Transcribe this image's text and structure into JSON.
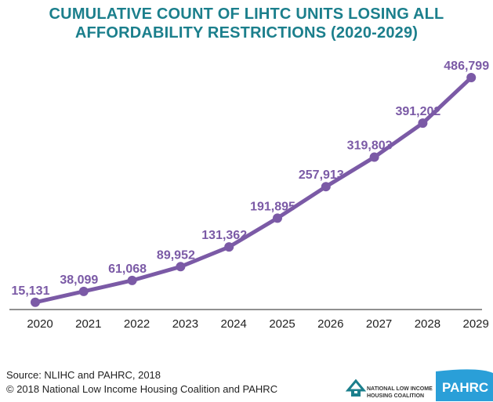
{
  "title": {
    "line1": "CUMULATIVE COUNT OF LIHTC UNITS LOSING ALL",
    "line2": "AFFORDABILITY RESTRICTIONS (2020-2029)"
  },
  "chart_data": {
    "type": "line",
    "categories": [
      "2020",
      "2021",
      "2022",
      "2023",
      "2024",
      "2025",
      "2026",
      "2027",
      "2028",
      "2029"
    ],
    "series": [
      {
        "values": [
          15131,
          38099,
          61068,
          89952,
          131362,
          191895,
          257913,
          319803,
          391202,
          486799
        ]
      }
    ],
    "data_labels": [
      "15,131",
      "38,099",
      "61,068",
      "89,952",
      "131,362",
      "191,895",
      "257,913",
      "319,803",
      "391,202",
      "486,799"
    ],
    "ylim": [
      0,
      500000
    ],
    "grid": false,
    "legend": "none",
    "colors": {
      "line": "#7b5aa6",
      "labels": "#7b5aa6",
      "axis": "#222222"
    }
  },
  "footer": {
    "source": "Source: NLIHC and PAHRC, 2018",
    "copyright": "© 2018 National Low Income Housing Coalition and PAHRC"
  },
  "logos": {
    "nlihc_line1": "NATIONAL LOW INCOME",
    "nlihc_line2": "HOUSING COALITION",
    "pahrc": "PAHRC",
    "nlihc_color": "#1b7f8c",
    "pahrc_color": "#2a9fd8"
  }
}
